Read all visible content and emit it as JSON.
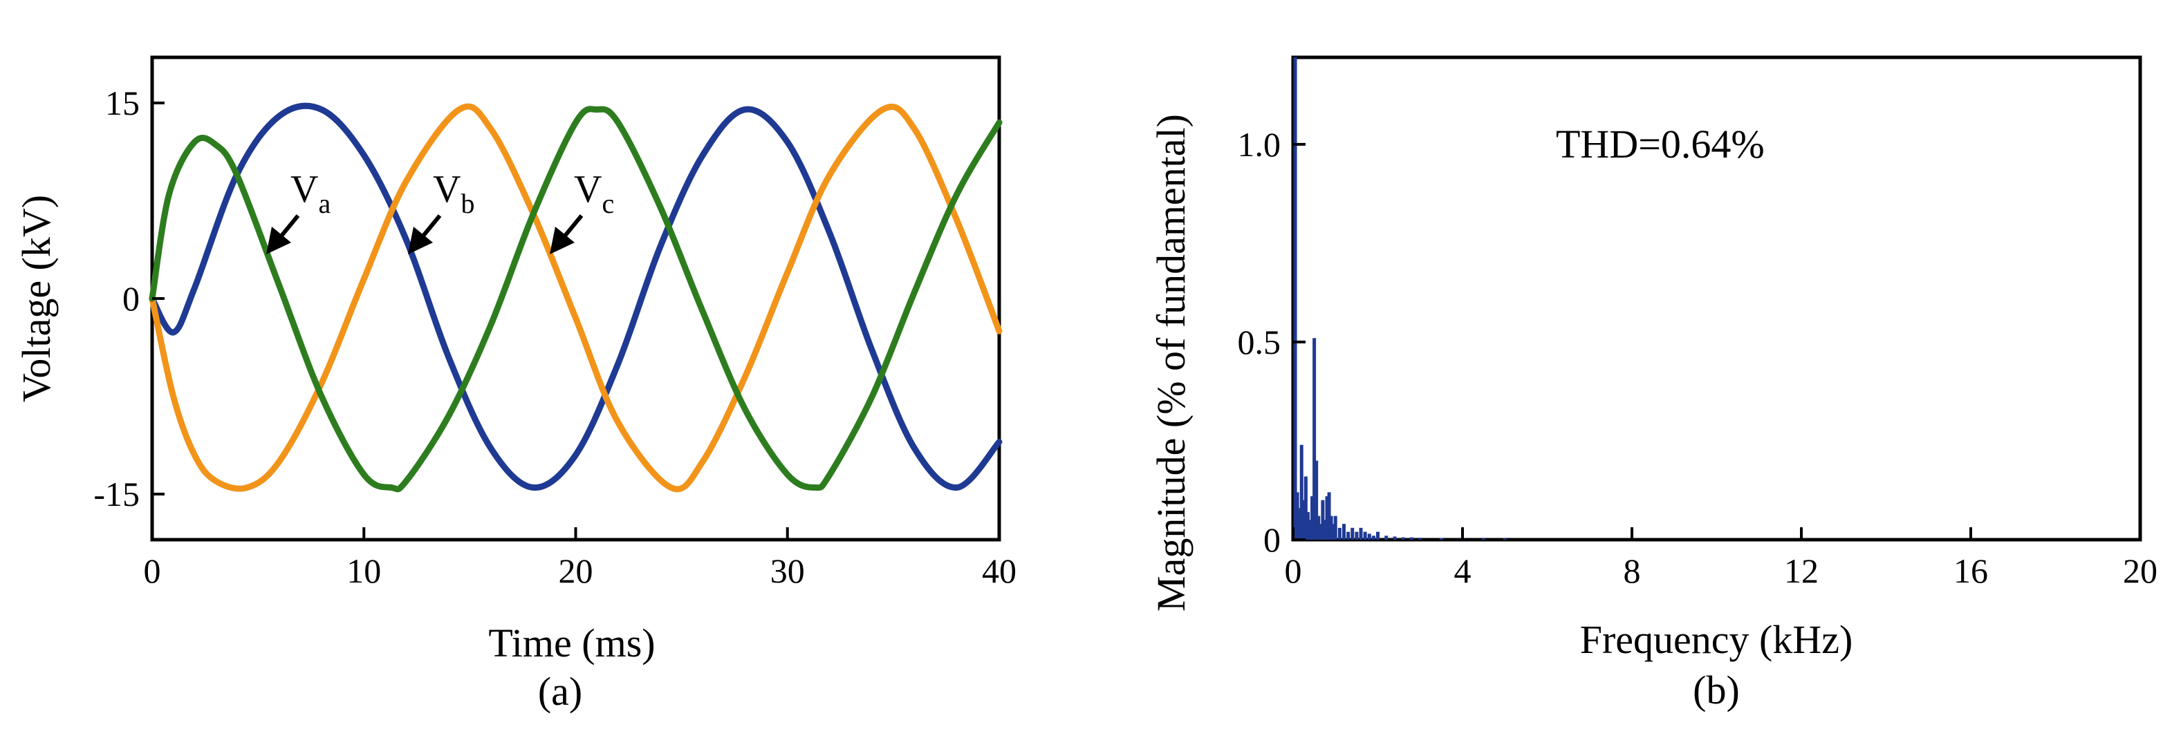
{
  "chart_data": [
    {
      "type": "line",
      "panel_label": "(a)",
      "xlabel": "Time (ms)",
      "ylabel": "Voltage (kV)",
      "xlim": [
        0,
        40
      ],
      "ylim": [
        -18.5,
        18.5
      ],
      "xticks": [
        "0",
        "10",
        "20",
        "30",
        "40"
      ],
      "xtick_values": [
        0,
        10,
        20,
        30,
        40
      ],
      "yticks": [
        "-15",
        "0",
        "15"
      ],
      "ytick_values": [
        -15,
        0,
        15
      ],
      "grid": false,
      "series": [
        {
          "name": "Va",
          "color": "#1f3a93",
          "x": [
            0,
            1,
            2,
            4,
            6,
            8,
            10,
            12,
            14,
            16,
            18,
            20,
            22,
            24,
            26,
            28,
            30,
            32,
            34,
            36,
            38,
            40
          ],
          "y": [
            0,
            -2.6,
            0.8,
            9.5,
            14.0,
            14.5,
            11.0,
            4.5,
            -4.5,
            -11.5,
            -14.5,
            -12.0,
            -5.0,
            4.0,
            11.0,
            14.5,
            12.0,
            5.0,
            -4.0,
            -11.5,
            -14.5,
            -11.0
          ]
        },
        {
          "name": "Vb",
          "color": "#f2941a",
          "x": [
            0,
            1,
            2,
            3,
            4.5,
            6,
            8,
            10,
            12,
            14.5,
            16,
            18,
            20,
            22,
            24.5,
            26,
            28,
            30,
            32,
            34.5,
            36,
            38,
            40
          ],
          "y": [
            0,
            -7.5,
            -12.0,
            -14.0,
            -14.5,
            -12.5,
            -6.5,
            1.5,
            9.0,
            14.5,
            13.0,
            6.5,
            -1.5,
            -9.5,
            -14.5,
            -12.5,
            -6.0,
            2.0,
            9.5,
            14.5,
            13.0,
            6.0,
            -2.5
          ]
        },
        {
          "name": "Vc",
          "color": "#2d7d1f",
          "x": [
            0,
            0.8,
            2,
            3,
            4,
            6,
            8,
            10,
            11.3,
            12,
            14,
            16,
            18,
            20,
            21,
            22,
            24,
            26,
            28,
            30,
            31.3,
            32,
            34,
            36,
            38,
            40
          ],
          "y": [
            0,
            8.0,
            12.0,
            11.8,
            9.5,
            1.0,
            -7.5,
            -13.5,
            -14.5,
            -14.0,
            -9.0,
            -2.0,
            6.5,
            13.5,
            14.5,
            13.5,
            7.0,
            -1.0,
            -8.5,
            -13.5,
            -14.5,
            -13.5,
            -7.5,
            0.5,
            8.0,
            13.5
          ]
        }
      ],
      "annotations": [
        {
          "main": "V",
          "sub": "a",
          "series": "Va"
        },
        {
          "main": "V",
          "sub": "b",
          "series": "Vb"
        },
        {
          "main": "V",
          "sub": "c",
          "series": "Vc"
        }
      ]
    },
    {
      "type": "bar",
      "panel_label": "(b)",
      "xlabel": "Frequency (kHz)",
      "ylabel": "Magnitude (% of fundamental)",
      "xlim": [
        0,
        20
      ],
      "ylim": [
        0,
        1.22
      ],
      "xticks": [
        "0",
        "4",
        "8",
        "12",
        "16",
        "20"
      ],
      "xtick_values": [
        0,
        4,
        8,
        12,
        16,
        20
      ],
      "yticks": [
        "0",
        "0.5",
        "1.0"
      ],
      "ytick_values": [
        0,
        0.5,
        1.0
      ],
      "grid": false,
      "color": "#1f3a93",
      "annotation": "THD=0.64%",
      "x": [
        0.05,
        0.1,
        0.15,
        0.2,
        0.25,
        0.3,
        0.35,
        0.4,
        0.45,
        0.5,
        0.55,
        0.6,
        0.65,
        0.7,
        0.75,
        0.8,
        0.85,
        0.9,
        0.95,
        1.0,
        1.1,
        1.2,
        1.3,
        1.4,
        1.5,
        1.6,
        1.7,
        1.8,
        1.9,
        2.0,
        2.2,
        2.4,
        2.6,
        2.8,
        3.0,
        3.5,
        4.0,
        4.5,
        5.0
      ],
      "y": [
        1.22,
        0.12,
        0.08,
        0.24,
        0.1,
        0.16,
        0.07,
        0.05,
        0.11,
        0.51,
        0.2,
        0.06,
        0.04,
        0.1,
        0.05,
        0.11,
        0.12,
        0.06,
        0.04,
        0.06,
        0.03,
        0.04,
        0.02,
        0.03,
        0.02,
        0.03,
        0.02,
        0.015,
        0.01,
        0.02,
        0.01,
        0.008,
        0.006,
        0.006,
        0.005,
        0.004,
        0.004,
        0.003,
        0.003
      ]
    }
  ]
}
